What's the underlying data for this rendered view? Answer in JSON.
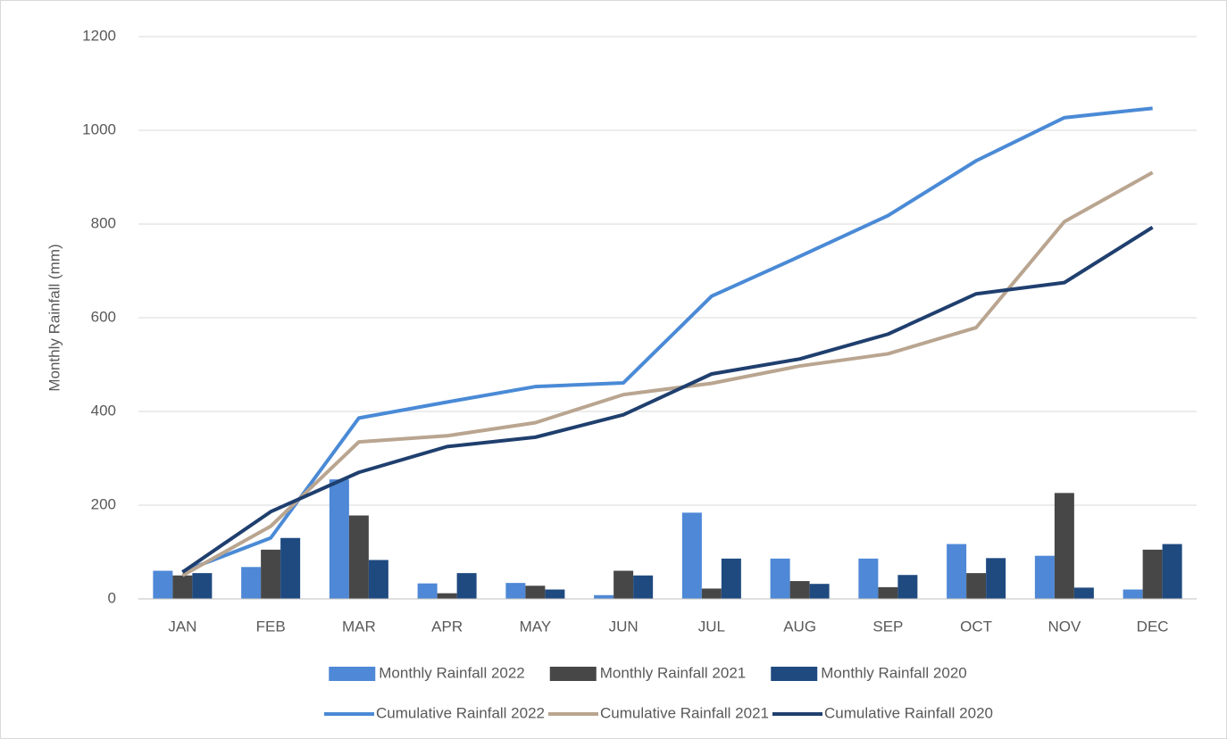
{
  "chart_data": {
    "type": "combo",
    "y_label": "Monthly Rainfall (mm)",
    "categories": [
      "JAN",
      "FEB",
      "MAR",
      "APR",
      "MAY",
      "JUN",
      "JUL",
      "AUG",
      "SEP",
      "OCT",
      "NOV",
      "DEC"
    ],
    "ylim": [
      0,
      1200
    ],
    "yticks": [
      0,
      200,
      400,
      600,
      800,
      1000,
      1200
    ],
    "grid": true,
    "legend": "bottom",
    "series": [
      {
        "name": "Monthly Rainfall 2022",
        "type": "bar",
        "color": "#4e88d6",
        "values": [
          60,
          68,
          255,
          33,
          34,
          8,
          184,
          86,
          86,
          117,
          92,
          20
        ]
      },
      {
        "name": "Monthly Rainfall 2021",
        "type": "bar",
        "color": "#474747",
        "values": [
          50,
          105,
          178,
          12,
          28,
          60,
          22,
          38,
          25,
          55,
          226,
          105
        ]
      },
      {
        "name": "Monthly Rainfall 2020",
        "type": "bar",
        "color": "#1f4a80",
        "values": [
          55,
          130,
          83,
          55,
          20,
          50,
          86,
          32,
          51,
          87,
          24,
          117
        ]
      },
      {
        "name": "Cumulative Rainfall 2022",
        "type": "line",
        "color": "#4a8ad6",
        "values": [
          58,
          130,
          386,
          420,
          453,
          461,
          646,
          731,
          818,
          935,
          1027,
          1047
        ]
      },
      {
        "name": "Cumulative Rainfall 2021",
        "type": "line",
        "color": "#b9a590",
        "values": [
          50,
          155,
          335,
          348,
          376,
          436,
          460,
          497,
          523,
          579,
          805,
          910
        ]
      },
      {
        "name": "Cumulative Rainfall 2020",
        "type": "line",
        "color": "#1f3f6e",
        "values": [
          57,
          186,
          270,
          325,
          345,
          393,
          480,
          512,
          565,
          651,
          675,
          793
        ]
      }
    ]
  }
}
